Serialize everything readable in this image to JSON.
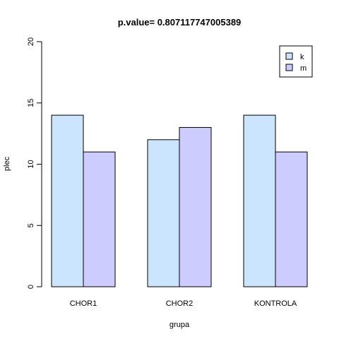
{
  "chart_data": {
    "type": "bar",
    "title": "p.value=  0.807117747005389",
    "xlabel": "grupa",
    "ylabel": "plec",
    "categories": [
      "CHOR1",
      "CHOR2",
      "KONTROLA"
    ],
    "series": [
      {
        "name": "k",
        "values": [
          14,
          12,
          14
        ],
        "color": "#cce5ff"
      },
      {
        "name": "m",
        "values": [
          11,
          13,
          11
        ],
        "color": "#ccccff"
      }
    ],
    "ylim": [
      0,
      20
    ],
    "yticks": [
      0,
      5,
      10,
      15,
      20
    ],
    "grid": false,
    "legend_position": "top-right"
  }
}
